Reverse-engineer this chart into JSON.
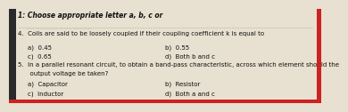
{
  "background_color": "#e8e0d0",
  "left_bar_color": "#2a2a2a",
  "header": "1: Choose appropriate letter a, b, c or",
  "header_fontsize": 5.5,
  "q4_text": "4.  Coils are said to be loosely coupled if their coupling coefficient k is equal to",
  "q4_a": "a)  0.45",
  "q4_b": "b)  0.55",
  "q4_c": "c)  0.65",
  "q4_d": "d)  Both b and c",
  "q5_text": "5.  In a parallel resonant circuit, to obtain a band-pass characteristic, across which element should the",
  "q5_text2": "      output voltage be taken?",
  "q5_a": "a)  Capacitor",
  "q5_b": "b)  Resistor",
  "q5_c": "c)  Inductor",
  "q5_d": "d)  Both a and c",
  "text_color": "#111111",
  "header_color": "#111111",
  "right_border_color": "#cc2222",
  "bottom_border_color": "#cc2222",
  "line_color": "#999999",
  "body_fontsize": 5.0,
  "left_bar_width": 0.022
}
